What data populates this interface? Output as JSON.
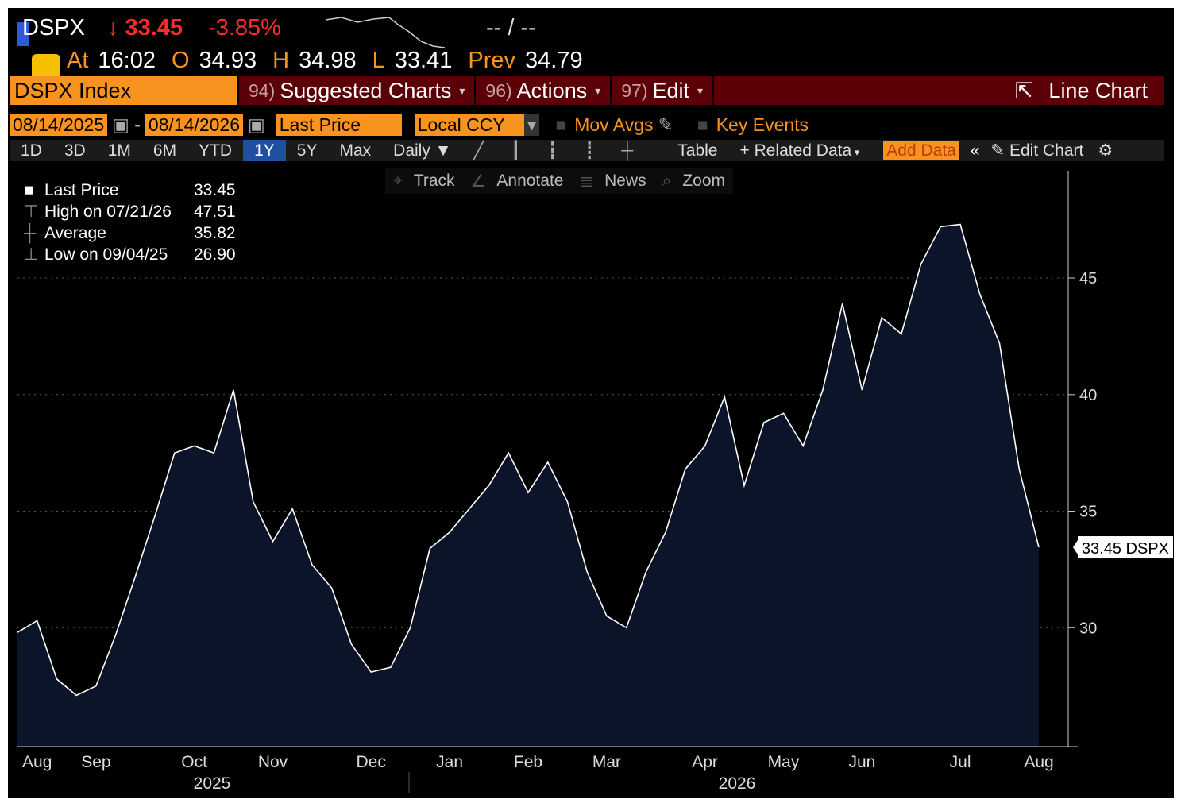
{
  "header": {
    "ticker": "DSPX",
    "change_arrow": "↓",
    "price": "33.45",
    "pct": "-3.85%",
    "bid_ask": "-- / --",
    "quote": [
      {
        "label": "At",
        "value": "16:02"
      },
      {
        "label": "O",
        "value": "34.93"
      },
      {
        "label": "H",
        "value": "34.98"
      },
      {
        "label": "L",
        "value": "33.41"
      },
      {
        "label": "Prev",
        "value": "34.79"
      }
    ]
  },
  "menu": {
    "security": "DSPX Index",
    "items": [
      {
        "num": "94)",
        "label": "Suggested Charts"
      },
      {
        "num": "96)",
        "label": "Actions"
      },
      {
        "num": "97)",
        "label": "Edit"
      }
    ],
    "chart_type": "Line Chart"
  },
  "controls": {
    "start_date": "08/14/2025",
    "end_date": "08/14/2026",
    "field": "Last Price",
    "currency": "Local CCY",
    "toggles": [
      "Mov Avgs",
      "Key Events"
    ]
  },
  "periods": [
    "1D",
    "3D",
    "1M",
    "6M",
    "YTD",
    "1Y",
    "5Y",
    "Max"
  ],
  "active_period": "1Y",
  "frequency": "Daily",
  "toolbar_right": [
    "Table",
    "Related Data",
    "Add Data",
    "Edit Chart"
  ],
  "tools": [
    "Track",
    "Annotate",
    "News",
    "Zoom"
  ],
  "legend": [
    {
      "label": "Last Price",
      "value": "33.45"
    },
    {
      "label": "High on 07/21/26",
      "value": "47.51"
    },
    {
      "label": "Average",
      "value": "35.82"
    },
    {
      "label": "Low on 09/04/25",
      "value": "26.90"
    }
  ],
  "chart_data": {
    "type": "line",
    "categories": [
      null,
      "Aug",
      null,
      null,
      "Sep",
      null,
      null,
      null,
      null,
      "Oct",
      null,
      null,
      null,
      "Nov",
      null,
      null,
      null,
      null,
      "Dec",
      null,
      null,
      null,
      "Jan",
      null,
      null,
      null,
      "Feb",
      null,
      null,
      null,
      "Mar",
      null,
      null,
      null,
      null,
      "Apr",
      null,
      null,
      null,
      "May",
      null,
      null,
      null,
      "Jun",
      null,
      null,
      null,
      null,
      "Jul",
      null,
      null,
      null,
      "Aug"
    ],
    "series": [
      {
        "name": "DSPX",
        "color": "#ffffff",
        "values": [
          29.8,
          30.3,
          27.8,
          27.1,
          27.5,
          29.7,
          32.2,
          34.8,
          37.5,
          37.8,
          37.5,
          40.2,
          35.4,
          33.7,
          35.1,
          32.7,
          31.7,
          29.3,
          28.1,
          28.3,
          30.0,
          33.4,
          34.1,
          35.1,
          36.1,
          37.5,
          35.8,
          37.1,
          35.4,
          32.4,
          30.5,
          30.0,
          32.4,
          34.1,
          36.8,
          37.8,
          39.9,
          36.1,
          38.8,
          39.2,
          37.8,
          40.2,
          43.9,
          40.2,
          43.3,
          42.6,
          45.6,
          47.2,
          47.3,
          44.3,
          42.2,
          36.8,
          33.45
        ]
      }
    ],
    "last_label": "33.45 DSPX",
    "year_labels": [
      "2025",
      "2026"
    ],
    "ylim": [
      24.9,
      49.6
    ],
    "yticks": [
      30,
      35,
      40,
      45
    ],
    "grid": true,
    "area_color": "#0b1428"
  }
}
